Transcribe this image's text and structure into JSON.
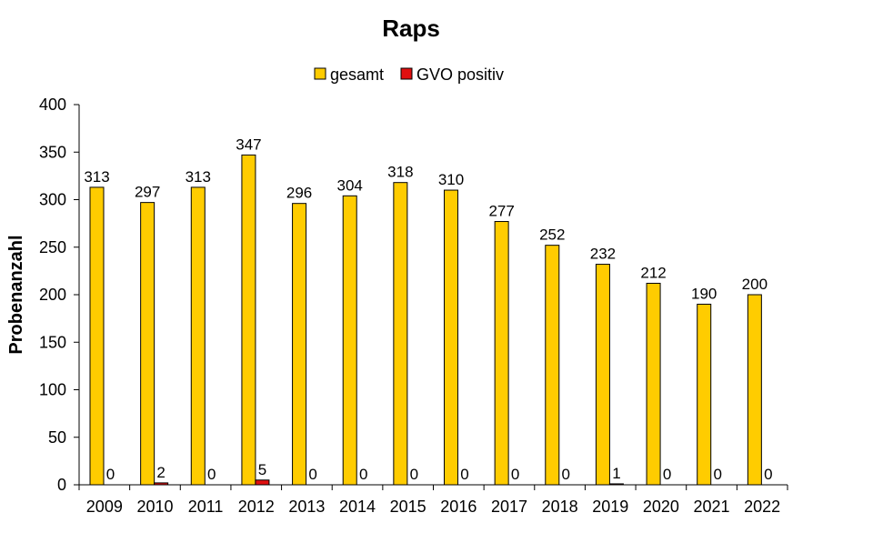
{
  "chart_data": {
    "type": "bar",
    "title": "Raps",
    "xlabel": "",
    "ylabel": "Probenanzahl",
    "ylim": [
      0,
      400
    ],
    "yticks": [
      0,
      50,
      100,
      150,
      200,
      250,
      300,
      350,
      400
    ],
    "grid": false,
    "legend_position": "top",
    "categories": [
      "2009",
      "2010",
      "2011",
      "2012",
      "2013",
      "2014",
      "2015",
      "2016",
      "2017",
      "2018",
      "2019",
      "2020",
      "2021",
      "2022"
    ],
    "series": [
      {
        "name": "gesamt",
        "color": "#FFCC00",
        "values": [
          313,
          297,
          313,
          347,
          296,
          304,
          318,
          310,
          277,
          252,
          232,
          212,
          190,
          200
        ]
      },
      {
        "name": "GVO positiv",
        "color": "#E01010",
        "values": [
          0,
          2,
          0,
          5,
          0,
          0,
          0,
          0,
          0,
          0,
          1,
          0,
          0,
          0
        ]
      }
    ]
  }
}
